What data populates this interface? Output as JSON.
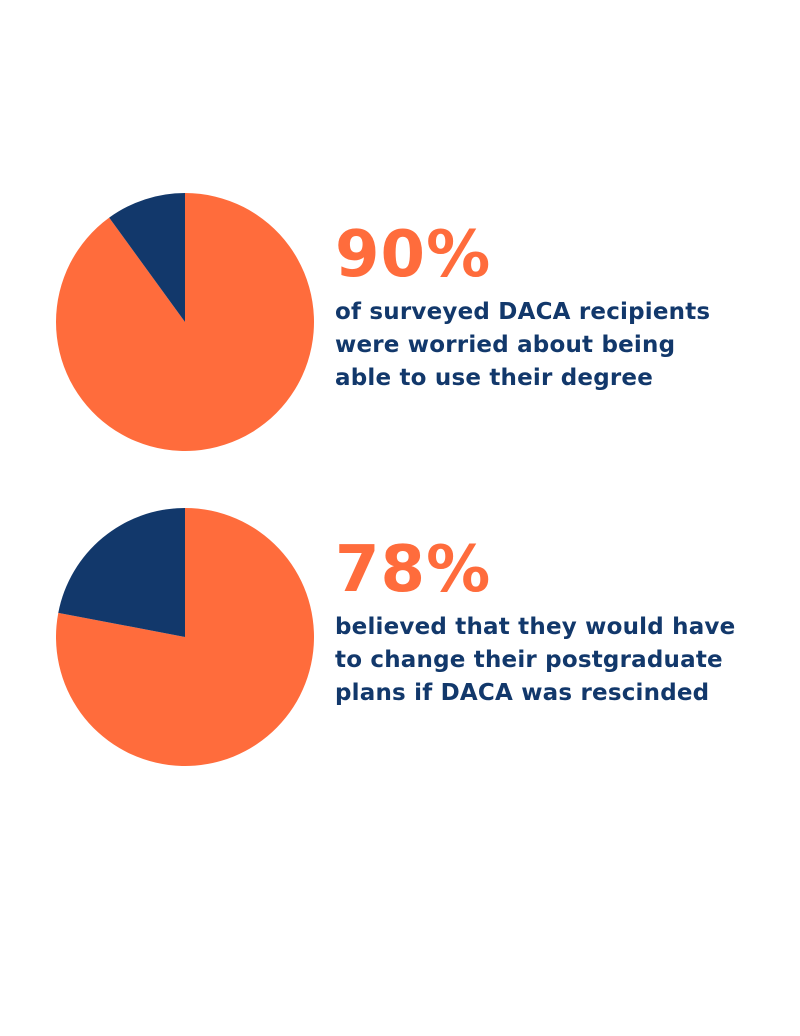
{
  "colors": {
    "accent": "#FF6C3C",
    "navy": "#12386B",
    "background": "#FFFFFF"
  },
  "stats": [
    {
      "value_label": "90%",
      "caption_lines": [
        "of surveyed DACA recipients",
        "were worried about being",
        "able to use their degree"
      ]
    },
    {
      "value_label": "78%",
      "caption_lines": [
        "believed that they would have",
        "to change their postgraduate",
        "plans if DACA was rescinded"
      ]
    }
  ],
  "chart_data": [
    {
      "type": "pie",
      "values": [
        90,
        10
      ],
      "colors": [
        "#FF6C3C",
        "#12386B"
      ]
    },
    {
      "type": "pie",
      "values": [
        78,
        22
      ],
      "colors": [
        "#FF6C3C",
        "#12386B"
      ]
    }
  ]
}
